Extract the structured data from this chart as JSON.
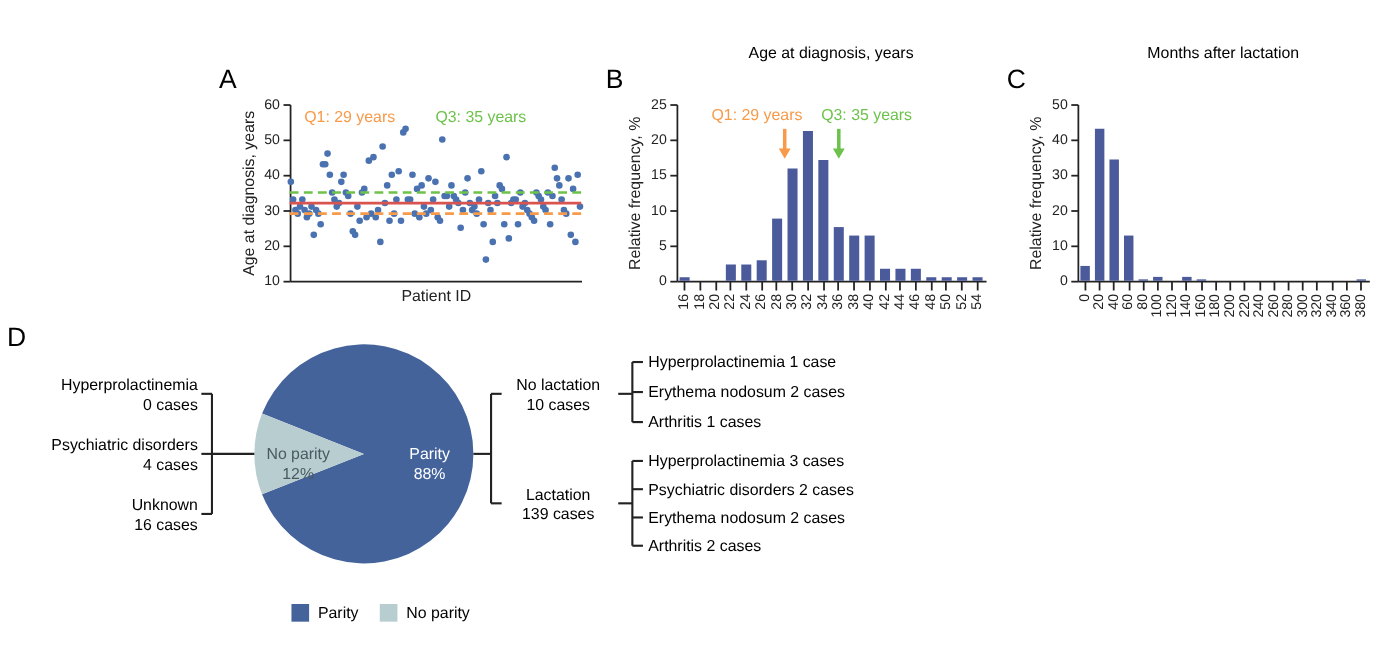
{
  "chart_data": [
    {
      "type": "scatter",
      "annotations": [
        "A",
        "Q1: 29 years",
        "Q3: 35 years"
      ],
      "xlabel": "Patient ID",
      "ylabel": "Age at diagnosis, years",
      "tick_labels": "y",
      "marker": "circle",
      "color": "#4a72b0",
      "ylim": [
        10,
        60
      ],
      "yticks": [
        10,
        20,
        30,
        40,
        50,
        60
      ],
      "categories": [
        null,
        null,
        null,
        null,
        null,
        null,
        null,
        null,
        null,
        null,
        null,
        null,
        null,
        null,
        null,
        null,
        null,
        null,
        null,
        null,
        null,
        null,
        null,
        null,
        null,
        null,
        null,
        null,
        null,
        null,
        null,
        null,
        null,
        null,
        null,
        null,
        null,
        null,
        null,
        null,
        null,
        null,
        null,
        null,
        null,
        null,
        null,
        null,
        null,
        null,
        null,
        null,
        null,
        null,
        null,
        null,
        null,
        null,
        null,
        null,
        null,
        null,
        null,
        null,
        null,
        null,
        null,
        null,
        null,
        null,
        null,
        null,
        null,
        null,
        null,
        null,
        null,
        null,
        null,
        null,
        null,
        null,
        null,
        null,
        null,
        null,
        null,
        null,
        null,
        null,
        null,
        null,
        null,
        null,
        null,
        null,
        null,
        null,
        null,
        null,
        null,
        null,
        null,
        null,
        null,
        null,
        null,
        null,
        null,
        null,
        null,
        null,
        null,
        null,
        null,
        null,
        null,
        null,
        null,
        null,
        null,
        null,
        null,
        null,
        null,
        null,
        null
      ],
      "values": [
        38,
        33,
        30,
        29,
        31,
        33,
        30,
        28,
        29,
        31,
        23,
        30,
        29,
        26,
        43,
        43,
        46,
        40,
        35,
        33,
        31,
        32,
        38,
        40,
        35,
        34,
        29,
        24,
        23,
        31,
        27,
        35,
        36,
        28,
        44,
        29,
        45,
        28,
        30,
        21,
        48,
        32,
        37,
        27,
        40,
        29,
        33,
        41,
        27,
        52,
        53,
        33,
        33,
        40,
        29,
        36,
        28,
        37,
        31,
        29,
        39,
        30,
        33,
        38,
        28,
        27,
        50,
        34,
        34,
        31,
        37,
        34,
        33,
        32,
        25,
        30,
        35,
        39,
        32,
        30,
        31,
        29,
        33,
        41,
        26,
        16,
        32,
        30,
        21,
        34,
        32,
        37,
        36,
        26,
        45,
        22,
        32,
        33,
        33,
        26,
        35,
        31,
        32,
        30,
        29,
        28,
        27,
        35,
        34,
        33,
        31,
        30,
        35,
        26,
        34,
        42,
        39,
        37,
        33,
        30,
        29,
        39,
        23,
        36,
        21,
        40,
        31
      ],
      "ref_lines": [
        {
          "axis": "y",
          "value": 35,
          "color": "#6cc24a",
          "line_style": "dashed"
        },
        {
          "axis": "y",
          "value": 32,
          "color": "#d9534f",
          "line_style": "solid"
        },
        {
          "axis": "y",
          "value": 29,
          "color": "#f79a4a",
          "line_style": "dashed"
        }
      ]
    },
    {
      "type": "bar",
      "title": "Age at diagnosis, years",
      "annotations": [
        "B",
        "Q1: 29 years",
        "Q3: 35 years"
      ],
      "ylabel": "Relative frequency, %",
      "color": "#4a5a9a",
      "ylim": [
        0,
        25
      ],
      "yticks": [
        0,
        5,
        10,
        15,
        20,
        25
      ],
      "categories": [
        "16",
        "18",
        "20",
        "22",
        "24",
        "26",
        "28",
        "30",
        "32",
        "34",
        "36",
        "38",
        "40",
        "42",
        "44",
        "46",
        "48",
        "50",
        "52",
        "54"
      ],
      "values": [
        0.5,
        0,
        0,
        2.3,
        2.3,
        2.9,
        8.8,
        15.9,
        21.2,
        17.1,
        7.6,
        6.4,
        6.4,
        1.7,
        1.7,
        1.7,
        0.5,
        0.5,
        0.5,
        0.5
      ]
    },
    {
      "type": "bar",
      "title": "Months after lactation",
      "annotations": [
        "C"
      ],
      "ylabel": "Relative frequency, %",
      "color": "#4a5a9a",
      "ylim": [
        0,
        50
      ],
      "yticks": [
        0,
        10,
        20,
        30,
        40,
        50
      ],
      "categories": [
        "0",
        "20",
        "40",
        "60",
        "80",
        "100",
        "120",
        "140",
        "160",
        "180",
        "200",
        "220",
        "240",
        "260",
        "280",
        "300",
        "320",
        "340",
        "360",
        "380"
      ],
      "values": [
        4.2,
        43,
        34.3,
        12.8,
        0.4,
        1.1,
        0,
        1.1,
        0.4,
        0,
        0,
        0,
        0,
        0,
        0,
        0,
        0,
        0,
        0,
        0.4
      ]
    },
    {
      "type": "pie",
      "categories": [
        "Parity",
        "No parity"
      ],
      "values": [
        88,
        12
      ],
      "value_labels": [
        "88%",
        "12%"
      ],
      "colors": [
        "#44639b",
        "#b8cdd0"
      ],
      "legend": "bottom",
      "annotations": [
        "D",
        "Hyperprolactinemia\n0 cases",
        "Psychiatric disorders\n4 cases",
        "Unknown\n16 cases",
        "No lactation\n10 cases",
        "Hyperprolactinemia 1 case",
        "Erythema nodosum 2 cases",
        "Arthritis 1 cases",
        "Lactation\n139 cases",
        "Hyperprolactinemia 3 cases",
        "Psychiatric disorders 2 cases",
        "Erythema nodosum 2 cases",
        "Arthritis 2 cases"
      ]
    }
  ]
}
